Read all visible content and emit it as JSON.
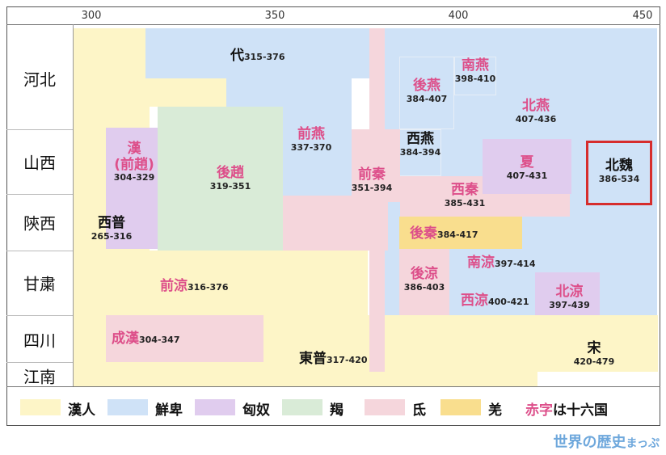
{
  "axis_years": [
    "300",
    "350",
    "400",
    "450"
  ],
  "regions": [
    "河北",
    "山西",
    "陝西",
    "甘粛",
    "四川",
    "江南"
  ],
  "states": {
    "dai": {
      "name": "代",
      "years": "315-376"
    },
    "nanyan": {
      "name": "南燕",
      "years": "398-410"
    },
    "houyan": {
      "name": "後燕",
      "years": "384-407"
    },
    "beiyan": {
      "name": "北燕",
      "years": "407-436"
    },
    "qianyan": {
      "name": "前燕",
      "years": "337-370"
    },
    "xiyan": {
      "name": "西燕",
      "years": "384-394"
    },
    "han": {
      "name": "漢",
      "name2": "(前趙)",
      "years": "304-329"
    },
    "houzhao": {
      "name": "後趙",
      "years": "319-351"
    },
    "qianqin": {
      "name": "前秦",
      "years": "351-394"
    },
    "xia": {
      "name": "夏",
      "years": "407-431"
    },
    "beiwei": {
      "name": "北魏",
      "years": "386-534"
    },
    "xiqin": {
      "name": "西秦",
      "years": "385-431"
    },
    "xijin": {
      "name": "西普",
      "years": "265-316"
    },
    "houqin": {
      "name": "後秦",
      "years": "384-417"
    },
    "houliang": {
      "name": "後涼",
      "years": "386-403"
    },
    "nanliang": {
      "name": "南涼",
      "years": "397-414"
    },
    "qianliang": {
      "name": "前涼",
      "years": "316-376"
    },
    "xiliang": {
      "name": "西涼",
      "years": "400-421"
    },
    "beiliang": {
      "name": "北涼",
      "years": "397-439"
    },
    "chenghan": {
      "name": "成漢",
      "years": "304-347"
    },
    "dongjin": {
      "name": "東普",
      "years": "317-420"
    },
    "song": {
      "name": "宋",
      "years": "420-479"
    }
  },
  "legend": [
    {
      "label": "漢人",
      "color": "#fdf5c7"
    },
    {
      "label": "鮮卑",
      "color": "#cfe2f7"
    },
    {
      "label": "匈奴",
      "color": "#e0ccee"
    },
    {
      "label": "羯",
      "color": "#d9ebd7"
    },
    {
      "label": "氐",
      "color": "#f5d6dc"
    },
    {
      "label": "羌",
      "color": "#f9de8e"
    }
  ],
  "legend_note": {
    "red": "赤字",
    "rest": "は十六国"
  },
  "brand": {
    "main": "世界の歴史",
    "small": "まっぷ"
  }
}
